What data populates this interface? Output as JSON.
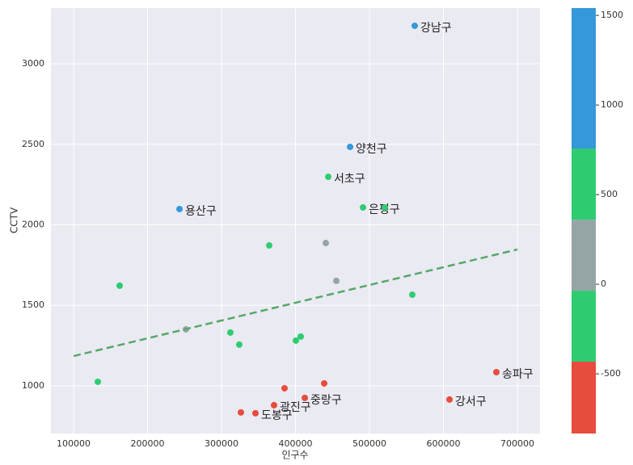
{
  "chart_data": {
    "type": "scatter",
    "xlabel": "인구수",
    "ylabel": "CCTV",
    "xlim": [
      69400,
      730600
    ],
    "ylim": [
      704,
      3346
    ],
    "xticks": [
      100000,
      200000,
      300000,
      400000,
      500000,
      600000,
      700000
    ],
    "yticks": [
      1000,
      1500,
      2000,
      2500,
      3000
    ],
    "grid": true,
    "x": [
      561200,
      473800,
      444300,
      491300,
      520800,
      243200,
      364500,
      441000,
      455200,
      162300,
      557900,
      251900,
      312000,
      324000,
      407100,
      400500,
      132800,
      671600,
      608200,
      438800,
      385200,
      412600,
      371000,
      326200,
      345900
    ],
    "y": [
      3236,
      2484,
      2298,
      2108,
      2108,
      2098,
      1872,
      1887,
      1652,
      1622,
      1566,
      1351,
      1331,
      1256,
      1306,
      1281,
      1025,
      1085,
      915,
      1015,
      985,
      925,
      880,
      835,
      830
    ],
    "colors": [
      "#3498db",
      "#3498db",
      "#2ecc71",
      "#2ecc71",
      "#2ecc71",
      "#3498db",
      "#2ecc71",
      "#95a5a6",
      "#95a5a6",
      "#2ecc71",
      "#2ecc71",
      "#95a5a6",
      "#2ecc71",
      "#2ecc71",
      "#2ecc71",
      "#2ecc71",
      "#2ecc71",
      "#e74c3c",
      "#e74c3c",
      "#e74c3c",
      "#e74c3c",
      "#e74c3c",
      "#e74c3c",
      "#e74c3c",
      "#e74c3c"
    ],
    "labels": [
      "강남구",
      "양천구",
      "서초구",
      "은평구",
      null,
      "용산구",
      null,
      null,
      null,
      null,
      null,
      null,
      null,
      null,
      null,
      null,
      null,
      "송파구",
      "강서구",
      null,
      null,
      "중랑구",
      "광진구",
      null,
      "도봉구"
    ],
    "trend_line": {
      "x": [
        100000,
        700000
      ],
      "y": [
        1185,
        1847
      ],
      "color": "#55a868"
    },
    "colorbar": {
      "lim": [
        -833,
        1541
      ],
      "ticks": [
        -500,
        0,
        500,
        1000,
        1500
      ],
      "segments": [
        {
          "from": -833,
          "to": -432,
          "color": "#e74c3c"
        },
        {
          "from": -432,
          "to": -36,
          "color": "#2ecc71"
        },
        {
          "from": -36,
          "to": 360,
          "color": "#95a5a6"
        },
        {
          "from": 360,
          "to": 757,
          "color": "#2ecc71"
        },
        {
          "from": 757,
          "to": 1541,
          "color": "#3498db"
        }
      ]
    }
  }
}
